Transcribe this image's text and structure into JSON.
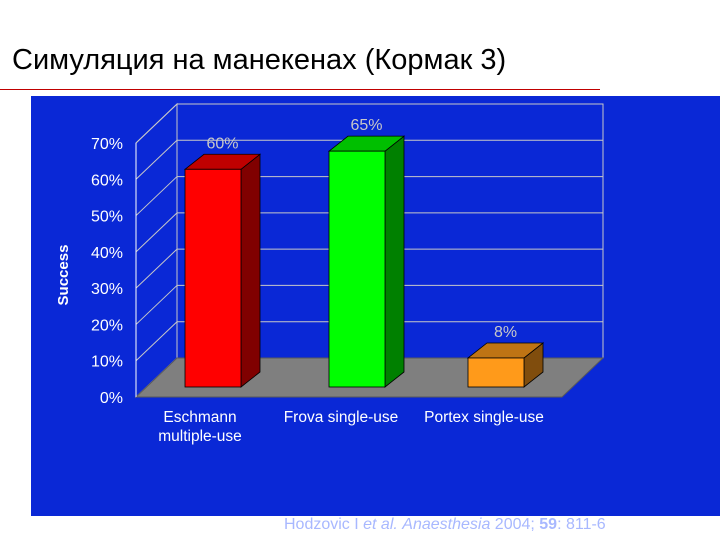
{
  "slide": {
    "title": "Симуляция на манекенах (Кормак 3)"
  },
  "citation": {
    "authors": "Hodzovic I ",
    "etal": "et al.",
    "journal": "Anaesthesia",
    "year": " 2004; ",
    "volume": "59",
    "pages": ": 811-6"
  },
  "colors": {
    "panel_background": "#0a28d6",
    "title_rule": "#c00000",
    "bar_eschmann": "#ff0000",
    "bar_frova": "#00ff00",
    "bar_portex": "#ff9a1a"
  },
  "chart_data": {
    "type": "bar",
    "style": "3d",
    "categories": [
      [
        "Eschmann",
        "multiple-use"
      ],
      [
        "Frova single-use"
      ],
      [
        "Portex single-use"
      ]
    ],
    "values": [
      60,
      65,
      8
    ],
    "data_labels": [
      "60%",
      "65%",
      "8%"
    ],
    "bar_colors": [
      "#ff0000",
      "#00ff00",
      "#ff9a1a"
    ],
    "ylabel": "Success",
    "xlabel": "",
    "title": "",
    "ylim": [
      0,
      70
    ],
    "yticks": [
      0,
      10,
      20,
      30,
      40,
      50,
      60,
      70
    ],
    "ytick_labels": [
      "0%",
      "10%",
      "20%",
      "30%",
      "40%",
      "50%",
      "60%",
      "70%"
    ],
    "grid": true,
    "legend": "none"
  }
}
